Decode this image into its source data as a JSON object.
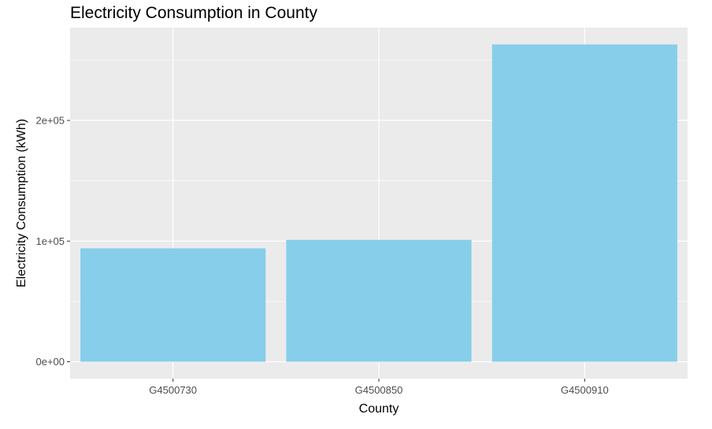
{
  "chart_data": {
    "type": "bar",
    "title": "Electricity Consumption in County",
    "xlabel": "County",
    "ylabel": "Electricity Consumption (kWh)",
    "categories": [
      "G4500730",
      "G4500850",
      "G4500910"
    ],
    "values": [
      94000,
      101000,
      263000
    ],
    "ylim": [
      -14000,
      277000
    ],
    "yticks": [
      0,
      100000,
      200000
    ],
    "ytick_labels": [
      "0e+00",
      "1e+05",
      "2e+05"
    ],
    "grid": true,
    "legend": "none",
    "colors": {
      "bar": "#87CEEB",
      "panel": "#EBEBEB",
      "grid_major": "#FFFFFF",
      "tick": "#333333"
    }
  }
}
